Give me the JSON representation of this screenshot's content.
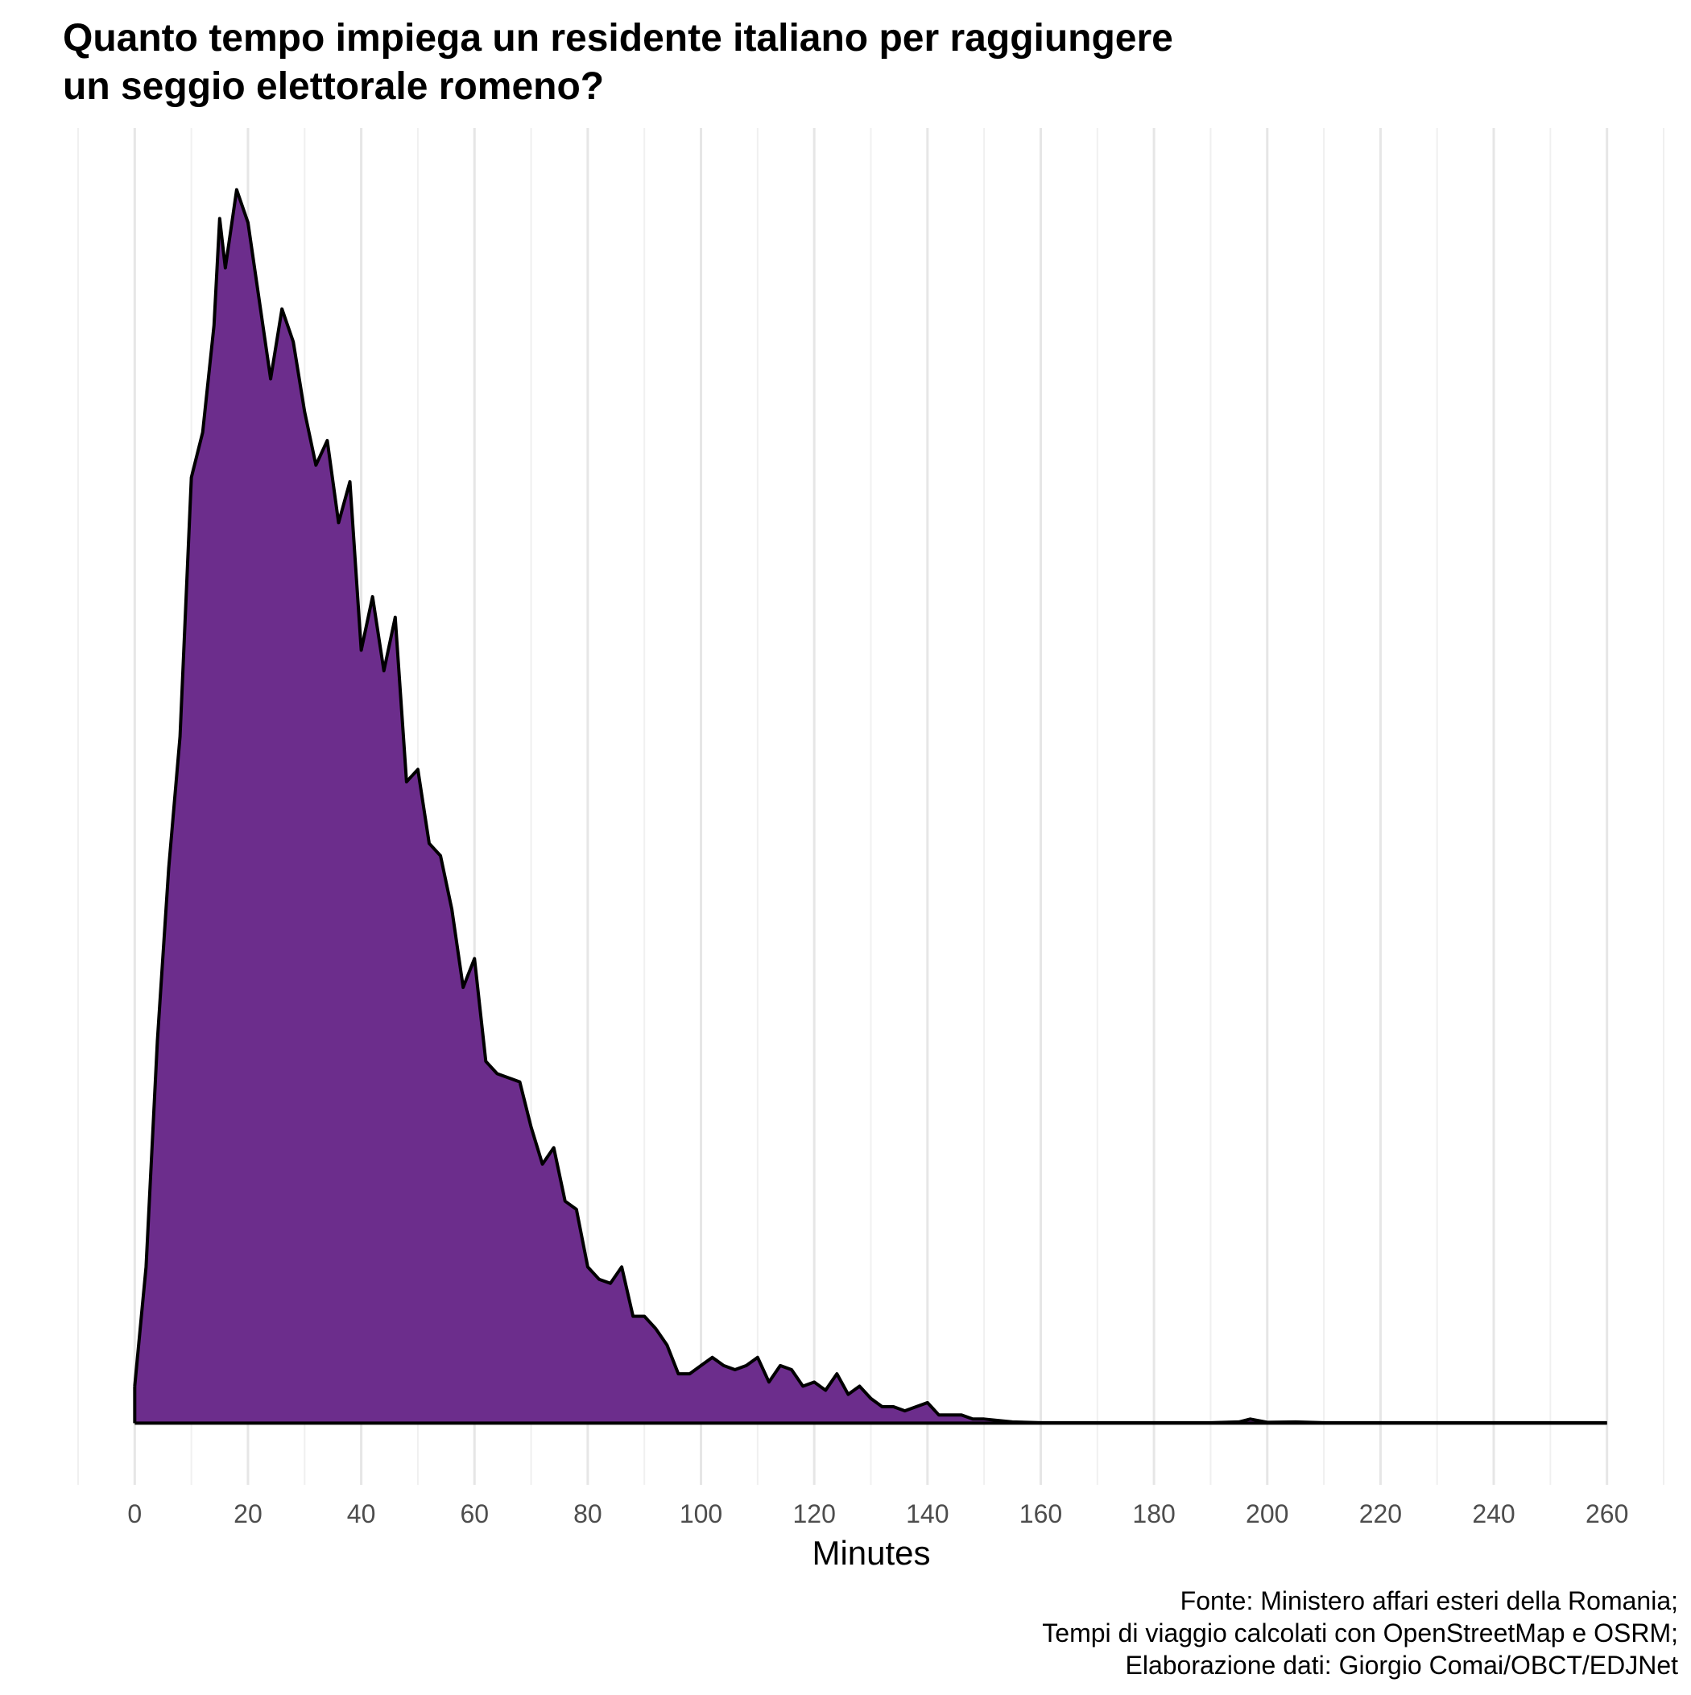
{
  "chart_data": {
    "type": "area",
    "title": [
      "Quanto tempo impiega un residente italiano per raggiungere",
      "un seggio elettorale romeno?"
    ],
    "x_label": "Minutes",
    "caption": [
      "Fonte: Ministero affari esteri della Romania;",
      "Tempi di viaggio calcolati con OpenStreetMap e OSRM;",
      "Elaborazione dati: Giorgio Comai/OBCT/EDJNet"
    ],
    "color": "#6c2d8c",
    "line_color": "#000000",
    "grid": true,
    "xlim": [
      -10,
      270
    ],
    "ylim": [
      -0.0015,
      0.0315
    ],
    "xticks": [
      0,
      20,
      40,
      60,
      80,
      100,
      120,
      140,
      160,
      180,
      200,
      220,
      240,
      260
    ],
    "x": [
      0,
      2,
      4,
      6,
      8,
      10,
      12,
      14,
      15,
      16,
      18,
      20,
      22,
      24,
      26,
      28,
      30,
      32,
      34,
      36,
      38,
      40,
      42,
      44,
      46,
      48,
      50,
      52,
      54,
      56,
      58,
      60,
      62,
      64,
      66,
      68,
      70,
      72,
      74,
      76,
      78,
      80,
      82,
      84,
      86,
      88,
      90,
      92,
      94,
      96,
      98,
      100,
      102,
      104,
      106,
      108,
      110,
      112,
      114,
      116,
      118,
      120,
      122,
      124,
      126,
      128,
      130,
      132,
      134,
      136,
      138,
      140,
      142,
      144,
      146,
      148,
      150,
      155,
      160,
      170,
      180,
      190,
      195,
      197,
      200,
      205,
      210,
      220,
      230,
      240,
      250,
      260
    ],
    "values": [
      0.0009,
      0.0038,
      0.0093,
      0.0135,
      0.0167,
      0.023,
      0.0241,
      0.0267,
      0.0293,
      0.0281,
      0.03,
      0.0292,
      0.0273,
      0.0254,
      0.0271,
      0.0263,
      0.0246,
      0.0233,
      0.0239,
      0.0219,
      0.0229,
      0.0188,
      0.0201,
      0.0183,
      0.0196,
      0.0156,
      0.0159,
      0.0141,
      0.0138,
      0.0125,
      0.0106,
      0.0113,
      0.0088,
      0.0085,
      0.0084,
      0.0083,
      0.0072,
      0.0063,
      0.0067,
      0.0054,
      0.0052,
      0.0038,
      0.0035,
      0.0034,
      0.0038,
      0.0026,
      0.0026,
      0.0023,
      0.0019,
      0.0012,
      0.0012,
      0.0014,
      0.0016,
      0.0014,
      0.0013,
      0.0014,
      0.0016,
      0.001,
      0.0014,
      0.0013,
      0.0009,
      0.001,
      0.0008,
      0.0012,
      0.0007,
      0.0009,
      0.0006,
      0.0004,
      0.0004,
      0.0003,
      0.0004,
      0.0005,
      0.0002,
      0.0002,
      0.0002,
      0.0001,
      0.0001,
      3e-05,
      1e-05,
      1e-05,
      1e-05,
      1e-05,
      3e-05,
      0.0001,
      2e-05,
      3e-05,
      1e-05,
      1e-05,
      1e-05,
      1e-05,
      1e-05,
      1e-05
    ]
  }
}
